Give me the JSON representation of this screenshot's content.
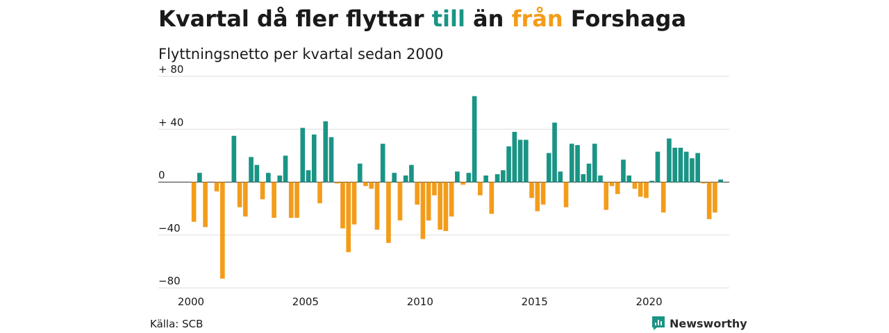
{
  "title": {
    "part1": "Kvartal då fler flyttar ",
    "till": "till",
    "part2": " än ",
    "fran": "från",
    "part3": " Forshaga"
  },
  "subtitle": "Flyttningsnetto per kvartal sedan 2000",
  "source": "Källa: SCB",
  "brand": "Newsworthy",
  "colors": {
    "positive": "#1a9485",
    "negative": "#f39c1a",
    "grid": "#dddddd",
    "brand": "#1a9485"
  },
  "chart_data": {
    "type": "bar",
    "title": "Kvartal då fler flyttar till än från Forshaga",
    "subtitle": "Flyttningsnetto per kvartal sedan 2000",
    "yticks": [
      {
        "value": 80,
        "label": "+ 80"
      },
      {
        "value": 40,
        "label": "+ 40"
      },
      {
        "value": 0,
        "label": "0"
      },
      {
        "value": -40,
        "label": "−40"
      },
      {
        "value": -80,
        "label": "−80"
      }
    ],
    "xticks": [
      {
        "value": 2000,
        "label": "2000"
      },
      {
        "value": 2005,
        "label": "2005"
      },
      {
        "value": 2010,
        "label": "2010"
      },
      {
        "value": 2015,
        "label": "2015"
      },
      {
        "value": 2020,
        "label": "2020"
      }
    ],
    "ylim": [
      -80,
      80
    ],
    "xlim": [
      2000,
      2023.5
    ],
    "x_start": 2000,
    "step": 0.25,
    "values": [
      -30,
      7,
      -34,
      0,
      -7,
      -73,
      0,
      35,
      -19,
      -26,
      19,
      13,
      -13,
      7,
      -27,
      5,
      20,
      -27,
      -27,
      41,
      9,
      36,
      -16,
      46,
      34,
      -1,
      -35,
      -53,
      -32,
      14,
      -3,
      -5,
      -36,
      29,
      -46,
      7,
      -29,
      5,
      13,
      -17,
      -43,
      -29,
      -10,
      -36,
      -37,
      -26,
      8,
      -2,
      7,
      65,
      -10,
      5,
      -24,
      6,
      9,
      27,
      38,
      32,
      32,
      -12,
      -22,
      -17,
      22,
      45,
      8,
      -19,
      29,
      28,
      6,
      14,
      29,
      5,
      -21,
      -3,
      -9,
      17,
      5,
      -5,
      -11,
      -12,
      1,
      23,
      -23,
      33,
      26,
      26,
      23,
      18,
      22,
      -1,
      -28,
      -23,
      2
    ]
  }
}
